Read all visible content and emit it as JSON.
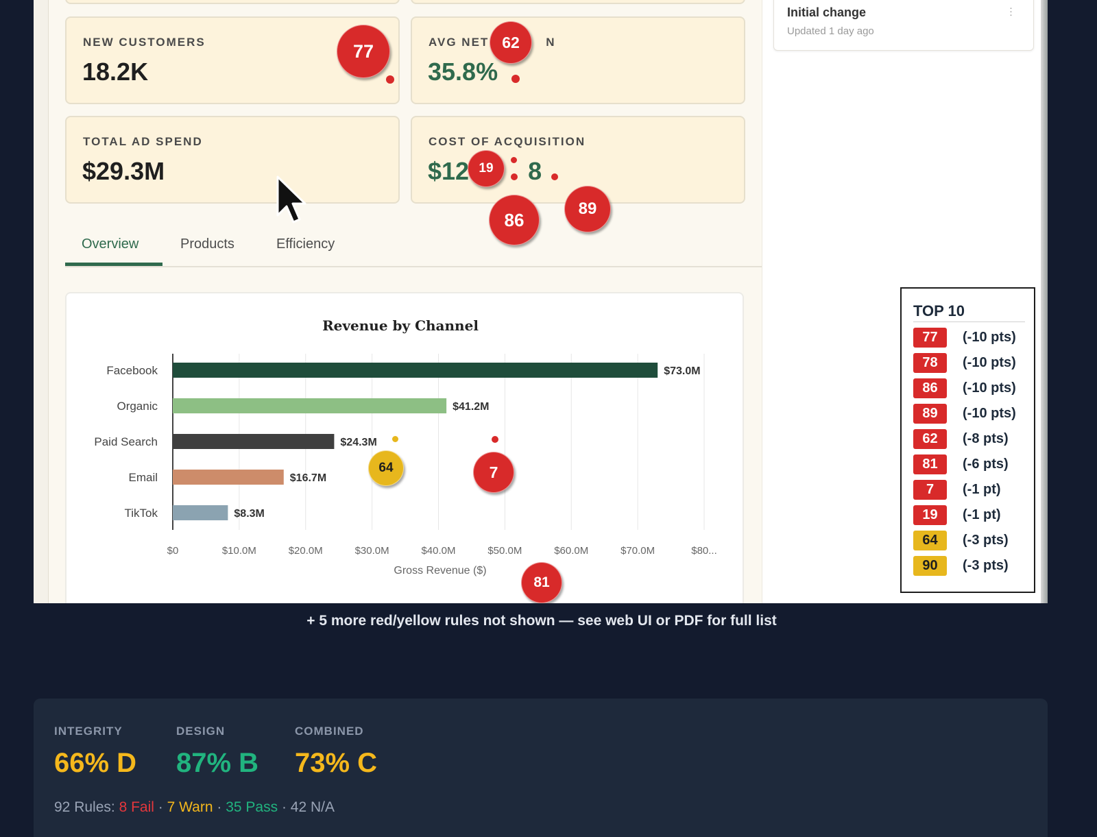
{
  "history": {
    "title": "Initial change",
    "subtitle": "Updated 1 day ago",
    "menu_icon": "kebab-icon"
  },
  "kpis": [
    {
      "label": "NEW CUSTOMERS",
      "value": "18.2K",
      "accent": "#1f1f1f"
    },
    {
      "label": "AVG NET M",
      "value": "35.8%",
      "accent": "#2f6a4d"
    },
    {
      "label": "TOTAL AD SPEND",
      "value": "$29.3M",
      "accent": "#1f1f1f"
    },
    {
      "label": "COST OF ACQUISITION",
      "value": "$12",
      "value_tail": "8",
      "accent": "#2f6a4d"
    }
  ],
  "kpi_label_tail": "N",
  "tabs": [
    {
      "label": "Overview",
      "active": true
    },
    {
      "label": "Products",
      "active": false
    },
    {
      "label": "Efficiency",
      "active": false
    }
  ],
  "chart_data": {
    "type": "bar",
    "orientation": "horizontal",
    "title": "Revenue by Channel",
    "xlabel": "Gross Revenue ($)",
    "ylabel": "",
    "categories": [
      "Facebook",
      "Organic",
      "Paid Search",
      "Email",
      "TikTok"
    ],
    "values": [
      73.0,
      41.2,
      24.3,
      16.7,
      8.3
    ],
    "value_labels": [
      "$73.0M",
      "$41.2M",
      "$24.3M",
      "$16.7M",
      "$8.3M"
    ],
    "colors": [
      "#1f4d3b",
      "#8dbf84",
      "#3f3f3f",
      "#cd8c6a",
      "#8ba3b1"
    ],
    "xlim": [
      0,
      80
    ],
    "x_ticks": [
      0,
      10,
      20,
      30,
      40,
      50,
      60,
      70,
      80
    ],
    "x_tick_labels": [
      "$0",
      "$10.0M",
      "$20.0M",
      "$30.0M",
      "$40.0M",
      "$50.0M",
      "$60.0M",
      "$70.0M",
      "$80..."
    ],
    "grid": "vertical"
  },
  "markers": [
    {
      "id": "77",
      "color": "red"
    },
    {
      "id": "62",
      "color": "red"
    },
    {
      "id": "19",
      "color": "red"
    },
    {
      "id": "86",
      "color": "red"
    },
    {
      "id": "89",
      "color": "red"
    },
    {
      "id": "64",
      "color": "yellow"
    },
    {
      "id": "7",
      "color": "red"
    },
    {
      "id": "81",
      "color": "red"
    }
  ],
  "top10": {
    "title": "TOP 10",
    "rows": [
      {
        "id": "77",
        "pts": "(-10 pts)",
        "color": "red"
      },
      {
        "id": "78",
        "pts": "(-10 pts)",
        "color": "red"
      },
      {
        "id": "86",
        "pts": "(-10 pts)",
        "color": "red"
      },
      {
        "id": "89",
        "pts": "(-10 pts)",
        "color": "red"
      },
      {
        "id": "62",
        "pts": "(-8 pts)",
        "color": "red"
      },
      {
        "id": "81",
        "pts": "(-6 pts)",
        "color": "red"
      },
      {
        "id": "7",
        "pts": "(-1 pt)",
        "color": "red"
      },
      {
        "id": "19",
        "pts": "(-1 pt)",
        "color": "red"
      },
      {
        "id": "64",
        "pts": "(-3 pts)",
        "color": "yellow"
      },
      {
        "id": "90",
        "pts": "(-3 pts)",
        "color": "yellow"
      }
    ]
  },
  "more_note": "+ 5 more red/yellow rules not shown — see web UI or PDF for full list",
  "scores": [
    {
      "label": "INTEGRITY",
      "value": "66% D",
      "color": "yellow"
    },
    {
      "label": "DESIGN",
      "value": "87% B",
      "color": "green"
    },
    {
      "label": "COMBINED",
      "value": "73% C",
      "color": "yellow"
    }
  ],
  "rules": {
    "prefix": "92 Rules:",
    "fail": "8 Fail",
    "warn": "7 Warn",
    "pass": "35 Pass",
    "na": "42 N/A",
    "separator": "·"
  },
  "colors": {
    "red": "#d82a2a",
    "yellow": "#e7b71d",
    "green": "#2f6a4d",
    "background": "#131b2e",
    "panel": "#1e293b"
  }
}
